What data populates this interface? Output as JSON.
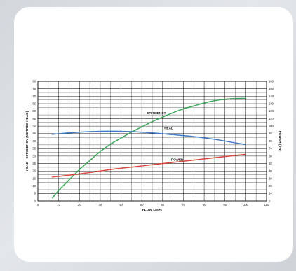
{
  "chart_data": {
    "type": "line",
    "title": "",
    "xlabel": "FLOW L/Sec",
    "ylabel_left": "HEAD - EFFICIENCY (METRES HEAD)",
    "ylabel_right": "POWER (kW)",
    "xlim": [
      0,
      110
    ],
    "ylim_left": [
      0,
      80
    ],
    "ylim_right": [
      0,
      160
    ],
    "x_ticks": [
      "0",
      "10",
      "20",
      "30",
      "40",
      "50",
      "60",
      "70",
      "80",
      "90",
      "100",
      "110"
    ],
    "y_left_ticks": [
      "0",
      "5",
      "10",
      "15",
      "20",
      "25",
      "30",
      "35",
      "40",
      "45",
      "50",
      "55",
      "60",
      "65",
      "70",
      "75",
      "80"
    ],
    "y_right_ticks": [
      "0",
      "10",
      "20",
      "30",
      "40",
      "50",
      "60",
      "70",
      "80",
      "90",
      "100",
      "110",
      "120",
      "130",
      "140",
      "150",
      "160"
    ],
    "grid": true,
    "series": [
      {
        "name": "EFFICIENCY",
        "axis": "left",
        "color": "#3aa65a",
        "x": [
          7,
          10,
          15,
          20,
          25,
          30,
          35,
          40,
          45,
          50,
          55,
          60,
          65,
          70,
          75,
          80,
          85,
          90,
          95,
          100
        ],
        "y": [
          2,
          7,
          14,
          21,
          27,
          33,
          38,
          42,
          46,
          49.5,
          53,
          56,
          59,
          61.5,
          63.5,
          65.5,
          67,
          68,
          68.5,
          68.5
        ]
      },
      {
        "name": "HEAD",
        "axis": "left",
        "color": "#3d79c4",
        "x": [
          7,
          15,
          25,
          35,
          45,
          55,
          65,
          75,
          85,
          95,
          100
        ],
        "y": [
          44.5,
          45.5,
          46.3,
          46.6,
          46.3,
          45.5,
          44.3,
          43,
          41.2,
          38.8,
          37.8
        ]
      },
      {
        "name": "POWER",
        "axis": "left",
        "color": "#d9473d",
        "x": [
          7,
          15,
          25,
          35,
          45,
          55,
          65,
          75,
          85,
          95,
          100
        ],
        "y": [
          16,
          17.2,
          19,
          21,
          22.6,
          24.2,
          25.8,
          27.3,
          28.9,
          30.4,
          31.2
        ]
      }
    ],
    "labels": [
      {
        "text": "EFFICIENCY",
        "x": 57,
        "y": 58
      },
      {
        "text": "HEAD",
        "x": 63,
        "y": 48
      },
      {
        "text": "POWER",
        "x": 67,
        "y": 27
      }
    ]
  }
}
